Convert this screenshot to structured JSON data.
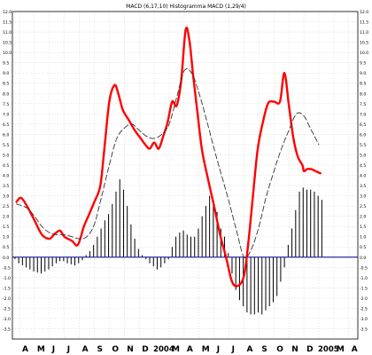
{
  "chart_data": {
    "type": "line",
    "title": "MACD (6,17,10) Histogramma MACD (1,29/4)",
    "xlabel": "",
    "ylabel": "",
    "ylim": [
      -4.0,
      12.0
    ],
    "x_unit": "month index (0 = Apr 2003)",
    "xlim": [
      -0.2,
      23.4
    ],
    "grid": true,
    "zero_line": true,
    "y_ticks": [
      12.0,
      11.5,
      11.0,
      10.5,
      10.0,
      9.5,
      9.0,
      8.5,
      8.0,
      7.5,
      7.0,
      6.5,
      6.0,
      5.5,
      5.0,
      4.5,
      4.0,
      3.5,
      3.0,
      2.5,
      2.0,
      1.5,
      1.0,
      0.5,
      0.0,
      -0.5,
      -1.0,
      -1.5,
      -2.0,
      -2.5,
      -3.0,
      -3.5
    ],
    "y_tick_labels": [
      "12.0",
      "11.5",
      "11.0",
      "10.5",
      "10.0",
      "9.5",
      "9.0",
      "8.5",
      "8.0",
      "7.5",
      "7.0",
      "6.5",
      "6.0",
      "5.5",
      "5.0",
      "4.5",
      "4.0",
      "3.5",
      "3.0",
      "2.5",
      "2.0",
      "1.5",
      "1.0",
      "0.5",
      "0.0",
      "-0.5",
      "-1.0",
      "-1.5",
      "-2.0",
      "-2.5",
      "-3.0",
      "-3.5"
    ],
    "x_ticks": [
      {
        "x": 0,
        "label": "A",
        "bold": false
      },
      {
        "x": 1,
        "label": "M",
        "bold": false
      },
      {
        "x": 2,
        "label": "J",
        "bold": false
      },
      {
        "x": 3,
        "label": "J",
        "bold": false
      },
      {
        "x": 4,
        "label": "A",
        "bold": false
      },
      {
        "x": 5,
        "label": "S",
        "bold": false
      },
      {
        "x": 6,
        "label": "O",
        "bold": false
      },
      {
        "x": 7,
        "label": "N",
        "bold": false
      },
      {
        "x": 8,
        "label": "D",
        "bold": false
      },
      {
        "x": 9,
        "label": "2004",
        "bold": true
      },
      {
        "x": 10,
        "label": "M",
        "bold": false
      },
      {
        "x": 11,
        "label": "A",
        "bold": false
      },
      {
        "x": 12,
        "label": "M",
        "bold": false
      },
      {
        "x": 13,
        "label": "J",
        "bold": false
      },
      {
        "x": 14,
        "label": "J",
        "bold": false
      },
      {
        "x": 15,
        "label": "A",
        "bold": false
      },
      {
        "x": 16,
        "label": "S",
        "bold": false
      },
      {
        "x": 17,
        "label": "O",
        "bold": false
      },
      {
        "x": 18,
        "label": "N",
        "bold": false
      },
      {
        "x": 19,
        "label": "D",
        "bold": false
      },
      {
        "x": 20,
        "label": "2005",
        "bold": true
      },
      {
        "x": 21,
        "label": "M",
        "bold": false
      },
      {
        "x": 22,
        "label": "A",
        "bold": false
      }
    ],
    "series": [
      {
        "role": "macd",
        "color": "#ff0000",
        "style": "solid",
        "x": [
          -0.2,
          0.1,
          0.5,
          1.0,
          1.5,
          2.0,
          2.3,
          2.7,
          3.0,
          3.5,
          3.9,
          4.3,
          4.6,
          5.0,
          5.4,
          5.7,
          6.0,
          6.35,
          6.6,
          6.9,
          7.3,
          7.7,
          8.1,
          8.4,
          8.7,
          9.0,
          9.3,
          9.6,
          9.9,
          10.2,
          10.5,
          10.8,
          11.1,
          11.35,
          11.6,
          11.9,
          12.2,
          12.6,
          13.0,
          13.4,
          13.8,
          14.2,
          14.6,
          15.0,
          15.3,
          15.6,
          15.9,
          16.2,
          16.6,
          17.0,
          17.4,
          17.7,
          18.0,
          18.3,
          18.6,
          18.9,
          19.0,
          19.2,
          19.5,
          19.8,
          20.1
        ],
        "y": [
          2.7,
          2.9,
          2.5,
          1.8,
          1.1,
          0.9,
          1.1,
          1.3,
          1.0,
          0.8,
          0.6,
          1.5,
          2.0,
          2.7,
          3.5,
          5.5,
          7.6,
          8.4,
          8.0,
          7.2,
          6.7,
          6.2,
          5.8,
          5.5,
          5.3,
          5.6,
          5.3,
          5.9,
          6.6,
          7.6,
          7.4,
          8.6,
          11.1,
          10.6,
          8.9,
          7.0,
          5.2,
          3.8,
          2.5,
          1.1,
          0.0,
          -1.2,
          -1.4,
          -0.9,
          0.8,
          3.0,
          5.2,
          6.4,
          7.5,
          7.6,
          7.6,
          9.0,
          7.4,
          5.8,
          4.9,
          4.5,
          4.2,
          4.3,
          4.3,
          4.2,
          4.1
        ]
      },
      {
        "role": "signal",
        "color": "#333333",
        "style": "dashed",
        "x": [
          -0.2,
          0.5,
          1.0,
          1.5,
          2.0,
          2.5,
          3.0,
          3.5,
          4.0,
          4.5,
          5.0,
          5.5,
          6.0,
          6.5,
          7.0,
          7.5,
          8.0,
          8.5,
          9.0,
          9.5,
          10.0,
          10.5,
          11.0,
          11.5,
          12.0,
          12.5,
          13.0,
          13.5,
          14.0,
          14.5,
          15.0,
          15.5,
          16.0,
          16.5,
          17.0,
          17.5,
          18.0,
          18.5,
          19.0,
          19.5,
          20.0
        ],
        "y": [
          2.6,
          2.4,
          2.0,
          1.5,
          1.2,
          1.1,
          1.1,
          1.0,
          0.9,
          1.0,
          1.6,
          3.0,
          4.5,
          5.8,
          6.3,
          6.5,
          6.2,
          5.9,
          5.8,
          6.0,
          6.5,
          7.8,
          9.1,
          9.0,
          8.0,
          6.7,
          5.3,
          4.0,
          2.7,
          1.3,
          0.0,
          0.4,
          1.5,
          3.0,
          4.2,
          5.3,
          6.2,
          7.0,
          6.9,
          6.2,
          5.5
        ]
      }
    ],
    "histogram": {
      "color": "#000000",
      "x": [
        -0.3,
        -0.05,
        0.2,
        0.45,
        0.7,
        0.95,
        1.2,
        1.45,
        1.7,
        1.95,
        2.2,
        2.45,
        2.7,
        2.95,
        3.2,
        3.45,
        3.7,
        3.95,
        4.2,
        4.45,
        4.7,
        4.95,
        5.2,
        5.45,
        5.7,
        5.95,
        6.2,
        6.45,
        6.7,
        6.95,
        7.2,
        7.45,
        7.7,
        7.95,
        8.2,
        8.45,
        8.7,
        8.95,
        9.2,
        9.45,
        9.7,
        9.95,
        10.2,
        10.45,
        10.7,
        10.95,
        11.2,
        11.45,
        11.7,
        11.95,
        12.2,
        12.45,
        12.7,
        12.95,
        13.2,
        13.45,
        13.7,
        13.95,
        14.2,
        14.45,
        14.7,
        14.95,
        15.2,
        15.45,
        15.7,
        15.95,
        16.2,
        16.45,
        16.7,
        16.95,
        17.2,
        17.45,
        17.7,
        17.95,
        18.2,
        18.45,
        18.7,
        18.95,
        19.2,
        19.45,
        19.7,
        19.95,
        20.2
      ],
      "y": [
        -0.1,
        -0.3,
        -0.4,
        -0.5,
        -0.6,
        -0.7,
        -0.75,
        -0.8,
        -0.7,
        -0.6,
        -0.45,
        -0.3,
        -0.2,
        -0.2,
        -0.3,
        -0.35,
        -0.4,
        -0.3,
        -0.15,
        0.1,
        0.3,
        0.6,
        1.0,
        1.4,
        1.8,
        2.1,
        2.6,
        3.2,
        3.8,
        3.3,
        2.5,
        1.6,
        0.9,
        0.4,
        0.1,
        -0.1,
        -0.3,
        -0.45,
        -0.6,
        -0.5,
        -0.3,
        -0.1,
        0.5,
        1.0,
        1.2,
        1.3,
        1.1,
        1.0,
        1.0,
        1.4,
        2.0,
        2.5,
        3.0,
        2.6,
        2.2,
        1.4,
        1.0,
        0.2,
        -0.8,
        -1.6,
        -2.1,
        -2.4,
        -2.7,
        -2.8,
        -2.8,
        -2.7,
        -2.8,
        -2.6,
        -2.4,
        -2.2,
        -1.9,
        -1.2,
        -0.5,
        0.6,
        1.4,
        2.3,
        3.2,
        3.4,
        3.3,
        3.3,
        3.2,
        3.0,
        2.8
      ]
    }
  }
}
